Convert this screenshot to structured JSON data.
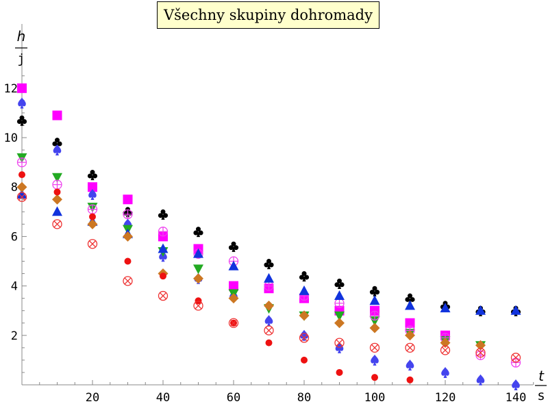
{
  "chart_data": {
    "type": "scatter",
    "title": "Všechny skupiny dohromady",
    "ylabel": {
      "numerator": "h",
      "denominator": "j"
    },
    "xlabel": {
      "numerator": "t",
      "denominator": "s"
    },
    "xlim": [
      0,
      145
    ],
    "ylim": [
      0,
      12.5
    ],
    "x_ticks": [
      20,
      40,
      60,
      80,
      100,
      120,
      140
    ],
    "y_ticks": [
      2,
      4,
      6,
      8,
      10,
      12
    ],
    "grid": false,
    "series": [
      {
        "marker": "club",
        "color": "#000000",
        "points": [
          [
            0,
            10.7
          ],
          [
            10,
            9.8
          ],
          [
            20,
            8.5
          ],
          [
            30,
            7.0
          ],
          [
            40,
            6.9
          ],
          [
            50,
            6.2
          ],
          [
            60,
            5.6
          ],
          [
            70,
            4.9
          ],
          [
            80,
            4.4
          ],
          [
            90,
            4.1
          ],
          [
            100,
            3.8
          ],
          [
            110,
            3.5
          ],
          [
            120,
            3.2
          ],
          [
            130,
            3.0
          ],
          [
            140,
            3.0
          ]
        ]
      },
      {
        "marker": "square",
        "color": "#ff00ff",
        "points": [
          [
            0,
            12.0
          ],
          [
            10,
            10.9
          ],
          [
            20,
            8.0
          ],
          [
            30,
            7.5
          ],
          [
            40,
            6.0
          ],
          [
            50,
            5.5
          ],
          [
            60,
            4.0
          ],
          [
            70,
            3.9
          ],
          [
            80,
            3.5
          ],
          [
            90,
            3.0
          ],
          [
            100,
            3.0
          ],
          [
            110,
            2.5
          ],
          [
            120,
            2.0
          ]
        ]
      },
      {
        "marker": "spade",
        "color": "#4444ee",
        "points": [
          [
            0,
            11.4
          ],
          [
            10,
            9.5
          ],
          [
            20,
            7.7
          ],
          [
            30,
            6.5
          ],
          [
            40,
            5.2
          ],
          [
            50,
            4.3
          ],
          [
            60,
            3.6
          ],
          [
            70,
            2.6
          ],
          [
            80,
            2.0
          ],
          [
            90,
            1.5
          ],
          [
            100,
            1.0
          ],
          [
            110,
            0.8
          ],
          [
            120,
            0.5
          ],
          [
            130,
            0.2
          ],
          [
            140,
            0.0
          ]
        ]
      },
      {
        "marker": "triangle-down",
        "color": "#22aa22",
        "points": [
          [
            0,
            9.2
          ],
          [
            10,
            8.4
          ],
          [
            20,
            7.2
          ],
          [
            30,
            6.3
          ],
          [
            40,
            5.4
          ],
          [
            50,
            4.7
          ],
          [
            60,
            3.7
          ],
          [
            70,
            3.1
          ],
          [
            80,
            2.8
          ],
          [
            90,
            2.8
          ],
          [
            100,
            2.6
          ],
          [
            110,
            2.1
          ],
          [
            120,
            1.8
          ],
          [
            130,
            1.6
          ]
        ]
      },
      {
        "marker": "circle-plus",
        "color": "#ee44ee",
        "points": [
          [
            0,
            9.0
          ],
          [
            10,
            8.1
          ],
          [
            20,
            7.1
          ],
          [
            30,
            6.9
          ],
          [
            40,
            6.2
          ],
          [
            50,
            5.3
          ],
          [
            60,
            5.0
          ],
          [
            70,
            4.0
          ],
          [
            80,
            3.6
          ],
          [
            90,
            3.3
          ],
          [
            100,
            2.8
          ],
          [
            110,
            2.2
          ],
          [
            120,
            1.9
          ],
          [
            130,
            1.2
          ],
          [
            140,
            0.9
          ]
        ]
      },
      {
        "marker": "triangle-up",
        "color": "#1133dd",
        "points": [
          [
            0,
            7.7
          ],
          [
            10,
            7.0
          ],
          [
            20,
            6.6
          ],
          [
            30,
            6.1
          ],
          [
            40,
            5.5
          ],
          [
            50,
            5.3
          ],
          [
            60,
            4.8
          ],
          [
            70,
            4.3
          ],
          [
            80,
            3.8
          ],
          [
            90,
            3.6
          ],
          [
            100,
            3.4
          ],
          [
            110,
            3.2
          ],
          [
            120,
            3.1
          ],
          [
            130,
            3.0
          ],
          [
            140,
            3.0
          ]
        ]
      },
      {
        "marker": "diamond",
        "color": "#cc7722",
        "points": [
          [
            0,
            8.0
          ],
          [
            10,
            7.5
          ],
          [
            20,
            6.5
          ],
          [
            30,
            6.0
          ],
          [
            40,
            4.5
          ],
          [
            50,
            4.3
          ],
          [
            60,
            3.5
          ],
          [
            70,
            3.2
          ],
          [
            80,
            2.8
          ],
          [
            90,
            2.5
          ],
          [
            100,
            2.3
          ],
          [
            110,
            2.0
          ],
          [
            120,
            1.7
          ],
          [
            130,
            1.6
          ]
        ]
      },
      {
        "marker": "dot",
        "color": "#ee1111",
        "points": [
          [
            0,
            8.5
          ],
          [
            10,
            7.8
          ],
          [
            20,
            6.8
          ],
          [
            30,
            5.0
          ],
          [
            40,
            4.4
          ],
          [
            50,
            3.4
          ],
          [
            60,
            2.5
          ],
          [
            70,
            1.7
          ],
          [
            80,
            1.0
          ],
          [
            90,
            0.5
          ],
          [
            100,
            0.3
          ],
          [
            110,
            0.2
          ]
        ]
      },
      {
        "marker": "circle-times",
        "color": "#ee3333",
        "points": [
          [
            0,
            7.6
          ],
          [
            10,
            6.5
          ],
          [
            20,
            5.7
          ],
          [
            30,
            4.2
          ],
          [
            40,
            3.6
          ],
          [
            50,
            3.2
          ],
          [
            60,
            2.5
          ],
          [
            70,
            2.2
          ],
          [
            80,
            1.9
          ],
          [
            90,
            1.7
          ],
          [
            100,
            1.5
          ],
          [
            110,
            1.5
          ],
          [
            120,
            1.4
          ],
          [
            130,
            1.3
          ],
          [
            140,
            1.1
          ]
        ]
      }
    ]
  }
}
